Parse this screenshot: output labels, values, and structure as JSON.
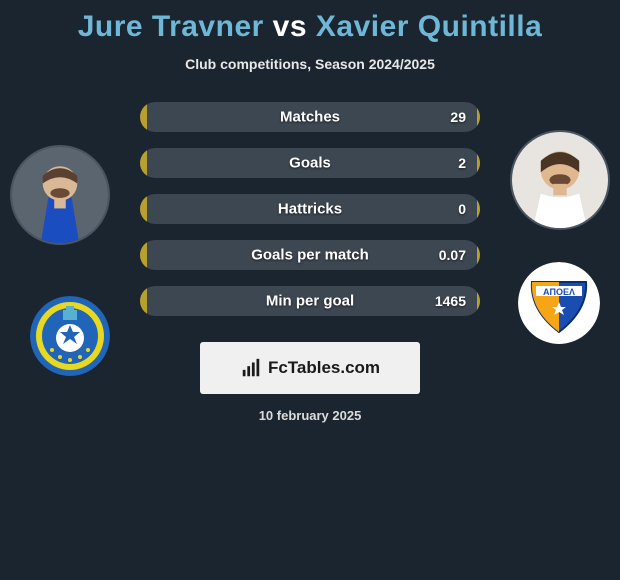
{
  "title": {
    "player1": "Jure Travner",
    "vs": "vs",
    "player2": "Xavier Quintilla"
  },
  "subtitle": "Club competitions, Season 2024/2025",
  "colors": {
    "background": "#1a2530",
    "title_player": "#6fb7d6",
    "title_vs": "#ffffff",
    "subtitle": "#e8e8e8",
    "stat_bg": "#3d4752",
    "stat_fill": "#b8a02e",
    "stat_text": "#ffffff",
    "footer_bg": "#f0f0f0",
    "footer_text": "#1a1a1a",
    "date_text": "#dcdcdc"
  },
  "stats": [
    {
      "label": "Matches",
      "value_right": "29",
      "fill_left_pct": 2,
      "fill_right_pct": 1
    },
    {
      "label": "Goals",
      "value_right": "2",
      "fill_left_pct": 2,
      "fill_right_pct": 1
    },
    {
      "label": "Hattricks",
      "value_right": "0",
      "fill_left_pct": 2,
      "fill_right_pct": 1
    },
    {
      "label": "Goals per match",
      "value_right": "0.07",
      "fill_left_pct": 2,
      "fill_right_pct": 1
    },
    {
      "label": "Min per goal",
      "value_right": "1465",
      "fill_left_pct": 2,
      "fill_right_pct": 1
    }
  ],
  "footer": {
    "brand": "FcTables.com"
  },
  "date": "10 february 2025",
  "avatars": {
    "left_label": "player-left-avatar",
    "right_label": "player-right-avatar"
  },
  "clubs": {
    "left_label": "club-left-badge",
    "right_label": "club-right-badge"
  }
}
